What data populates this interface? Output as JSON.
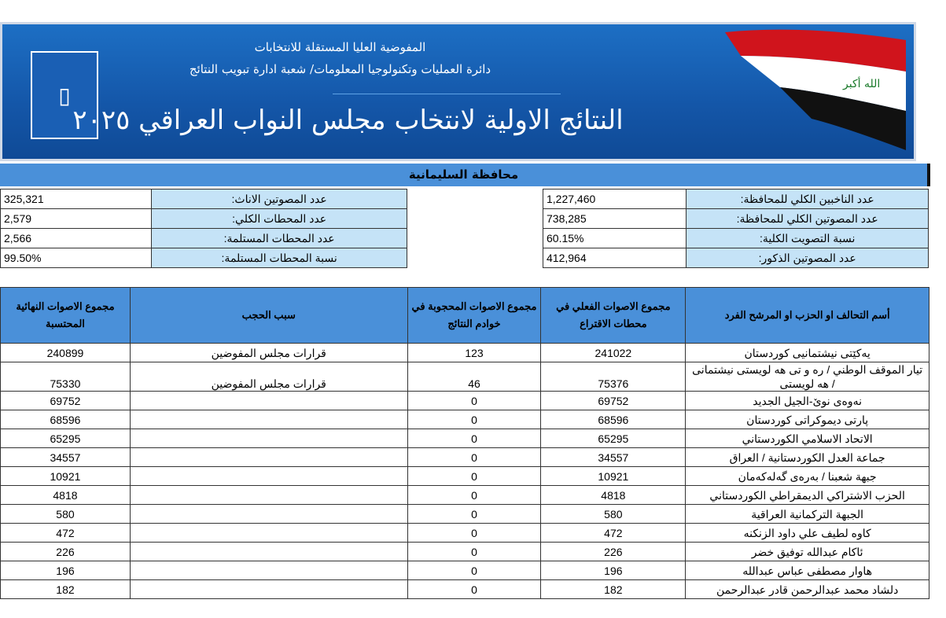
{
  "header": {
    "line1": "المفوضية العليا المستقلة للانتخابات",
    "line2": "دائرة العمليات وتكنولوجيا المعلومات/ شعبة ادارة تبويب النتائج",
    "title": "النتائج الاولية لانتخاب مجلس النواب العراقي ٢٠٢٥",
    "flag_text": "الله أكبر"
  },
  "province": "محافظة السليمانية",
  "summary_right": [
    {
      "label": "عدد الناخبين الكلي للمحافظة:",
      "value": "1,227,460"
    },
    {
      "label": "عدد المصوتين الكلي للمحافظة:",
      "value": "738,285"
    },
    {
      "label": "نسبة التصويت الكلية:",
      "value": "60.15%"
    },
    {
      "label": "عدد المصوتين الذكور:",
      "value": "412,964"
    }
  ],
  "summary_left": [
    {
      "label": "عدد المصوتين الاناث:",
      "value": "325,321"
    },
    {
      "label": "عدد المحطات الكلي:",
      "value": "2,579"
    },
    {
      "label": "عدد المحطات المستلمة:",
      "value": "2,566"
    },
    {
      "label": "نسبة المحطات المستلمة:",
      "value": "99.50%"
    }
  ],
  "table": {
    "headers": [
      "أسم التحالف او الحزب او المرشح الفرد",
      "مجموع الاصوات الفعلي في محطات الاقتراع",
      "مجموع الاصوات المحجوبة في خوادم النتائج",
      "سبب الحجب",
      "مجموع الاصوات النهائية المحتسبة"
    ],
    "rows": [
      [
        "یەکێتی نیشتمانیی کوردستان",
        "241022",
        "123",
        "قرارات مجلس المفوضين",
        "240899"
      ],
      [
        "تيار الموقف الوطني / ره و تى هه لويستى نيشتمانى / هه لويستى",
        "75376",
        "46",
        "قرارات مجلس المفوضين",
        "75330"
      ],
      [
        "نەوەی نوێ-الجيل الجديد",
        "69752",
        "0",
        "",
        "69752"
      ],
      [
        "پارتی دیموکراتی کوردستان",
        "68596",
        "0",
        "",
        "68596"
      ],
      [
        "الاتحاد الاسلامي الكوردستاني",
        "65295",
        "0",
        "",
        "65295"
      ],
      [
        "جماعة العدل الكوردستانية / العراق",
        "34557",
        "0",
        "",
        "34557"
      ],
      [
        "جبهة شعبنا / بەرەی گەلەکەمان",
        "10921",
        "0",
        "",
        "10921"
      ],
      [
        "الحزب الاشتراكي الديمقراطي الكوردستاني",
        "4818",
        "0",
        "",
        "4818"
      ],
      [
        "الجبهة التركمانية العراقية",
        "580",
        "0",
        "",
        "580"
      ],
      [
        "كاوه لطيف علي داود الزنكنه",
        "472",
        "0",
        "",
        "472"
      ],
      [
        "ئاكام عبدالله توفيق خضر",
        "226",
        "0",
        "",
        "226"
      ],
      [
        "هاوار مصطفى عباس عبدالله",
        "196",
        "0",
        "",
        "196"
      ],
      [
        "دلشاد محمد عبدالرحمن قادر عبدالرحمن",
        "182",
        "0",
        "",
        "182"
      ]
    ]
  }
}
